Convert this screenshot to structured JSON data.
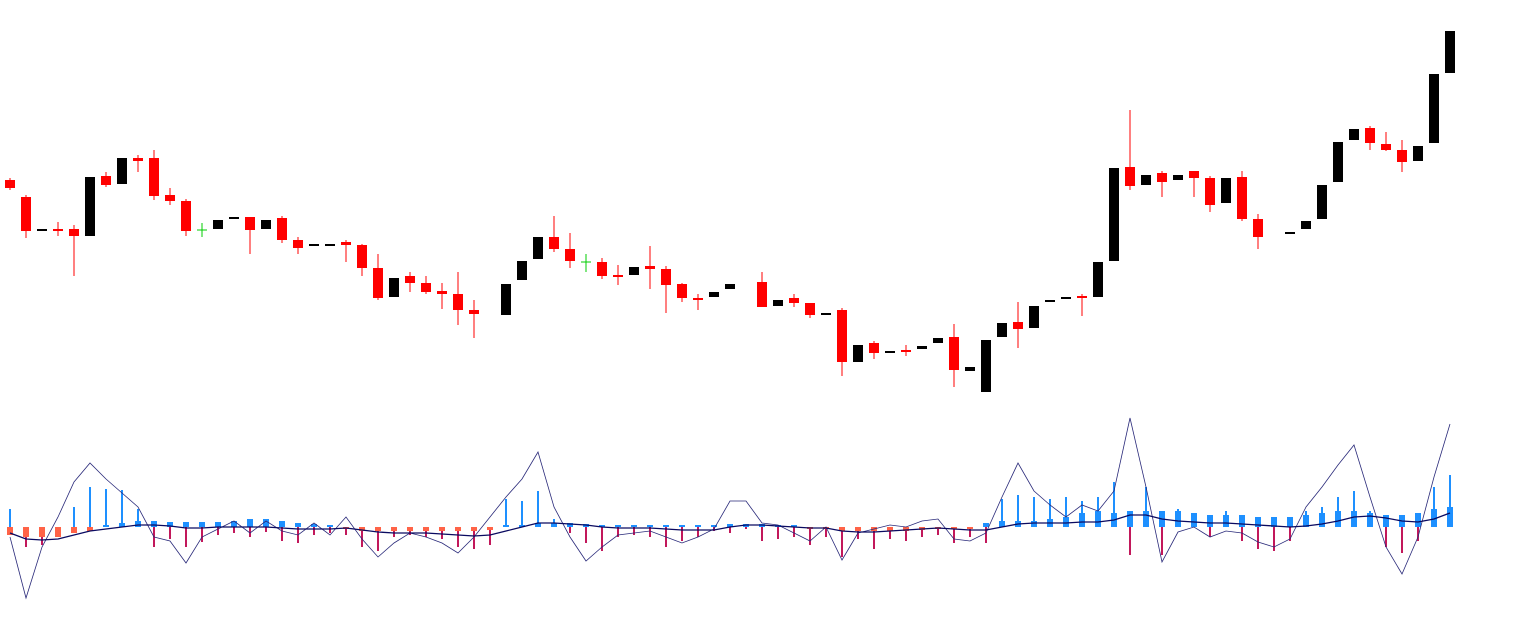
{
  "chart_data": [
    {
      "type": "candlestick",
      "ylim": [
        0,
        400
      ],
      "up_color": "#000000",
      "down_color": "#ff0000",
      "doji_color": "#00cc00",
      "open": [
        220,
        203,
        169,
        171,
        171,
        164,
        224,
        216,
        242,
        242,
        205,
        199,
        170,
        171,
        182,
        183,
        171,
        182,
        160,
        155,
        155,
        158,
        155,
        132,
        103,
        124,
        117,
        109,
        106,
        90,
        null,
        85,
        120,
        141,
        163,
        151,
        138,
        138,
        125,
        125,
        134,
        131,
        116,
        102,
        103,
        111,
        null,
        118,
        94,
        102,
        97,
        86,
        90,
        38,
        57,
        47,
        50,
        51,
        57,
        63,
        29,
        8,
        63,
        78,
        72,
        98,
        102,
        104,
        103,
        139,
        233,
        215,
        227,
        220,
        229,
        222,
        197,
        223,
        181,
        null,
        166,
        171,
        181,
        218,
        260,
        272,
        256,
        250,
        239,
        257,
        327
      ],
      "high": [
        222,
        205,
        171,
        178,
        175,
        223,
        228,
        242,
        245,
        250,
        212,
        201,
        177,
        180,
        183,
        183,
        180,
        184,
        163,
        156,
        156,
        160,
        156,
        146,
        122,
        128,
        124,
        117,
        128,
        100,
        null,
        116,
        139,
        163,
        184,
        167,
        146,
        142,
        135,
        133,
        154,
        134,
        117,
        106,
        108,
        116,
        null,
        128,
        100,
        106,
        97,
        87,
        92,
        55,
        59,
        49,
        55,
        54,
        62,
        76,
        33,
        60,
        77,
        98,
        94,
        100,
        103,
        106,
        138,
        232,
        290,
        225,
        229,
        225,
        229,
        224,
        222,
        229,
        186,
        null,
        168,
        179,
        215,
        258,
        271,
        274,
        268,
        260,
        254,
        326,
        369
      ],
      "low": [
        210,
        162,
        169,
        164,
        124,
        164,
        213,
        216,
        228,
        200,
        195,
        164,
        163,
        171,
        182,
        146,
        171,
        157,
        146,
        155,
        155,
        138,
        124,
        100,
        103,
        108,
        106,
        91,
        75,
        62,
        null,
        85,
        120,
        141,
        148,
        132,
        128,
        121,
        115,
        125,
        111,
        87,
        98,
        90,
        103,
        111,
        null,
        93,
        94,
        93,
        82,
        86,
        24,
        38,
        41,
        47,
        44,
        51,
        57,
        13,
        29,
        8,
        63,
        52,
        72,
        98,
        102,
        84,
        103,
        139,
        210,
        215,
        203,
        220,
        203,
        188,
        197,
        179,
        151,
        null,
        166,
        171,
        181,
        218,
        260,
        250,
        249,
        228,
        239,
        257,
        327
      ],
      "close": [
        212,
        169,
        171,
        169,
        164,
        223,
        215,
        242,
        239,
        204,
        199,
        169,
        170,
        180,
        183,
        170,
        180,
        160,
        152,
        156,
        156,
        155,
        132,
        102,
        122,
        117,
        108,
        106,
        90,
        86,
        null,
        116,
        139,
        163,
        151,
        139,
        138,
        124,
        124,
        133,
        131,
        115,
        102,
        101,
        108,
        116,
        null,
        93,
        100,
        97,
        85,
        87,
        38,
        55,
        47,
        49,
        49,
        54,
        62,
        30,
        33,
        60,
        77,
        71,
        94,
        100,
        103,
        102,
        138,
        232,
        214,
        225,
        218,
        225,
        222,
        195,
        222,
        181,
        163,
        null,
        168,
        179,
        215,
        258,
        271,
        257,
        250,
        238,
        254,
        326,
        369
      ]
    },
    {
      "type": "indicator",
      "ylim": [
        -80,
        110
      ],
      "series": [
        {
          "kind": "bar",
          "width": 2,
          "up_color": "#1e90ff",
          "down_color": "#c2185b",
          "values": [
            18,
            -20,
            -18,
            -10,
            20,
            40,
            38,
            37,
            18,
            -20,
            -12,
            -20,
            -15,
            -8,
            -6,
            -10,
            -5,
            -14,
            -16,
            -8,
            -6,
            -8,
            -20,
            -24,
            -10,
            -8,
            -10,
            -12,
            -20,
            -22,
            -18,
            28,
            26,
            36,
            8,
            -6,
            -16,
            -24,
            -10,
            -8,
            -10,
            -20,
            -14,
            -10,
            -4,
            -6,
            -2,
            -14,
            -12,
            -10,
            -18,
            -10,
            -30,
            -12,
            -22,
            -12,
            -14,
            -10,
            -8,
            -16,
            -10,
            -16,
            28,
            32,
            30,
            28,
            30,
            26,
            30,
            45,
            -28,
            40,
            -28,
            18,
            10,
            -10,
            16,
            -14,
            -22,
            -24,
            -14,
            16,
            20,
            30,
            36,
            16,
            -20,
            -26,
            -14,
            40,
            52
          ]
        },
        {
          "kind": "bar",
          "width": 6,
          "up_color": "#1e90ff",
          "down_color": "#ff6347",
          "values": [
            -8,
            -10,
            -10,
            -10,
            -6,
            -4,
            2,
            4,
            6,
            6,
            5,
            5,
            5,
            5,
            6,
            8,
            8,
            6,
            4,
            3,
            2,
            -2,
            -4,
            -4,
            -4,
            -4,
            -4,
            -4,
            -4,
            -4,
            -3,
            2,
            2,
            4,
            4,
            4,
            3,
            2,
            2,
            2,
            2,
            2,
            2,
            2,
            2,
            3,
            3,
            3,
            2,
            2,
            -2,
            -2,
            -4,
            -4,
            -4,
            -4,
            -4,
            -3,
            -2,
            -2,
            -2,
            4,
            6,
            6,
            6,
            8,
            10,
            14,
            16,
            14,
            16,
            16,
            16,
            16,
            14,
            12,
            12,
            12,
            10,
            10,
            10,
            12,
            14,
            16,
            16,
            14,
            12,
            12,
            14,
            18,
            20
          ]
        },
        {
          "kind": "line",
          "width": 0.8,
          "color": "#2a2a7a",
          "values": [
            -10,
            -71,
            -20,
            10,
            45,
            64,
            48,
            34,
            20,
            -10,
            -14,
            -36,
            -10,
            -2,
            6,
            -6,
            6,
            -4,
            -8,
            4,
            -8,
            10,
            -12,
            -30,
            -16,
            -6,
            -10,
            -16,
            -26,
            -10,
            10,
            30,
            48,
            75,
            20,
            -10,
            -34,
            -20,
            -8,
            -6,
            -4,
            -10,
            -16,
            -10,
            -2,
            26,
            26,
            4,
            2,
            -6,
            -14,
            0,
            -33,
            -6,
            -2,
            2,
            0,
            6,
            8,
            -12,
            -14,
            -6,
            30,
            64,
            36,
            22,
            10,
            22,
            16,
            36,
            109,
            40,
            -35,
            -5,
            0,
            -10,
            -4,
            -6,
            -15,
            -20,
            -12,
            20,
            40,
            62,
            82,
            30,
            -20,
            -47,
            -10,
            50,
            103
          ]
        },
        {
          "kind": "line",
          "width": 1.3,
          "color": "#0a0a60",
          "values": [
            -6,
            -12,
            -13,
            -12,
            -8,
            -4,
            -2,
            0,
            2,
            2,
            1,
            -1,
            -1,
            0,
            0,
            0,
            0,
            -1,
            -2,
            -2,
            -2,
            -1,
            -3,
            -5,
            -6,
            -6,
            -6,
            -7,
            -8,
            -9,
            -8,
            -4,
            0,
            4,
            4,
            3,
            2,
            0,
            -1,
            -1,
            -1,
            -2,
            -3,
            -3,
            -3,
            0,
            2,
            2,
            1,
            0,
            -1,
            -1,
            -4,
            -5,
            -5,
            -4,
            -3,
            -2,
            -1,
            -2,
            -3,
            -3,
            0,
            3,
            4,
            4,
            4,
            5,
            5,
            7,
            12,
            12,
            8,
            6,
            5,
            4,
            4,
            3,
            2,
            1,
            0,
            1,
            3,
            6,
            10,
            11,
            9,
            6,
            5,
            8,
            14
          ]
        }
      ]
    }
  ]
}
